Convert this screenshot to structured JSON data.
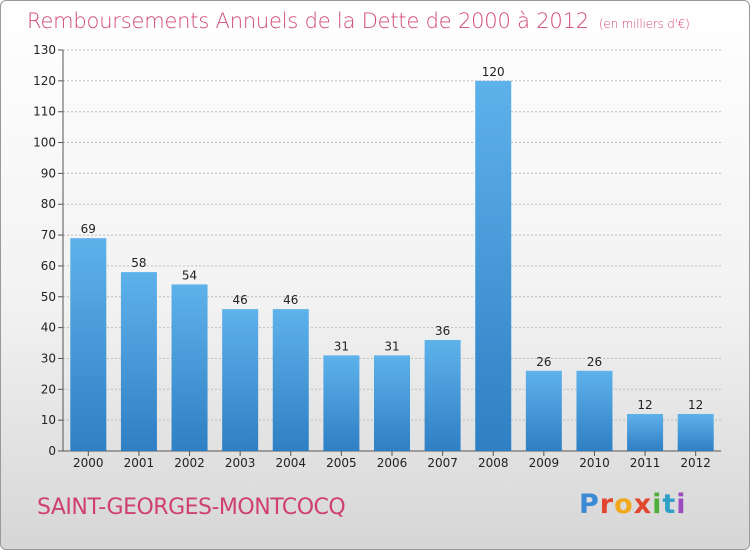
{
  "chart_data": {
    "type": "bar",
    "title": "Remboursements Annuels de la Dette de 2000 à 2012",
    "subtitle": "(en milliers d'€)",
    "categories": [
      "2000",
      "2001",
      "2002",
      "2003",
      "2004",
      "2005",
      "2006",
      "2007",
      "2008",
      "2009",
      "2010",
      "2011",
      "2012"
    ],
    "values": [
      69,
      58,
      54,
      46,
      46,
      31,
      31,
      36,
      120,
      26,
      26,
      12,
      12
    ],
    "ylim": [
      0,
      130
    ],
    "yticks": [
      0,
      10,
      20,
      30,
      40,
      50,
      60,
      70,
      80,
      90,
      100,
      110,
      120,
      130
    ],
    "grid": true,
    "bar_color": "#4a9fe0"
  },
  "footer": {
    "commune": "SAINT-GEORGES-MONTCOCQ",
    "logo": "Proxiti"
  }
}
